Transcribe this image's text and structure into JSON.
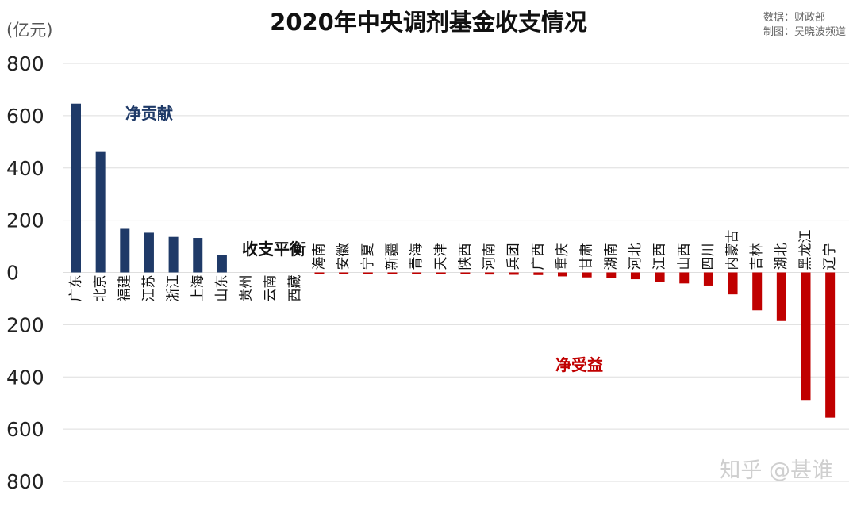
{
  "chart_data": {
    "type": "bar",
    "title": "2020年中央调剂基金收支情况",
    "unit": "(亿元)",
    "source_lines": [
      "数据：财政部",
      "制图：吴晓波频道"
    ],
    "ylim": [
      -800,
      800
    ],
    "y_ticks": [
      800,
      600,
      400,
      200,
      0,
      -200,
      -400,
      -600,
      -800
    ],
    "y_tick_labels": [
      "800",
      "600",
      "400",
      "200",
      "0",
      "200",
      "400",
      "600",
      "800"
    ],
    "grid": true,
    "categories": [
      "广东",
      "北京",
      "福建",
      "江苏",
      "浙江",
      "上海",
      "山东",
      "贵州",
      "云南",
      "西藏",
      "海南",
      "安徽",
      "宁夏",
      "新疆",
      "青海",
      "天津",
      "陕西",
      "河南",
      "兵团",
      "广西",
      "重庆",
      "甘肃",
      "湖南",
      "河北",
      "江西",
      "山西",
      "四川",
      "内蒙古",
      "吉林",
      "湖北",
      "黑龙江",
      "辽宁"
    ],
    "values": [
      646,
      461,
      167,
      152,
      136,
      132,
      68,
      0,
      0,
      0,
      -1,
      -2,
      -3,
      -4,
      -5,
      -6,
      -7,
      -8,
      -9,
      -10,
      -15,
      -19,
      -21,
      -26,
      -36,
      -42,
      -50,
      -84,
      -145,
      -186,
      -488,
      -556
    ],
    "colors": {
      "positive": "#1F3A68",
      "negative": "#C00000"
    },
    "annotations": [
      {
        "text": "净贡献",
        "color": "#1F3A68"
      },
      {
        "text": "收支平衡",
        "color": "#111111"
      },
      {
        "text": "净受益",
        "color": "#C00000"
      }
    ]
  },
  "watermark": "知乎 @甚谁"
}
